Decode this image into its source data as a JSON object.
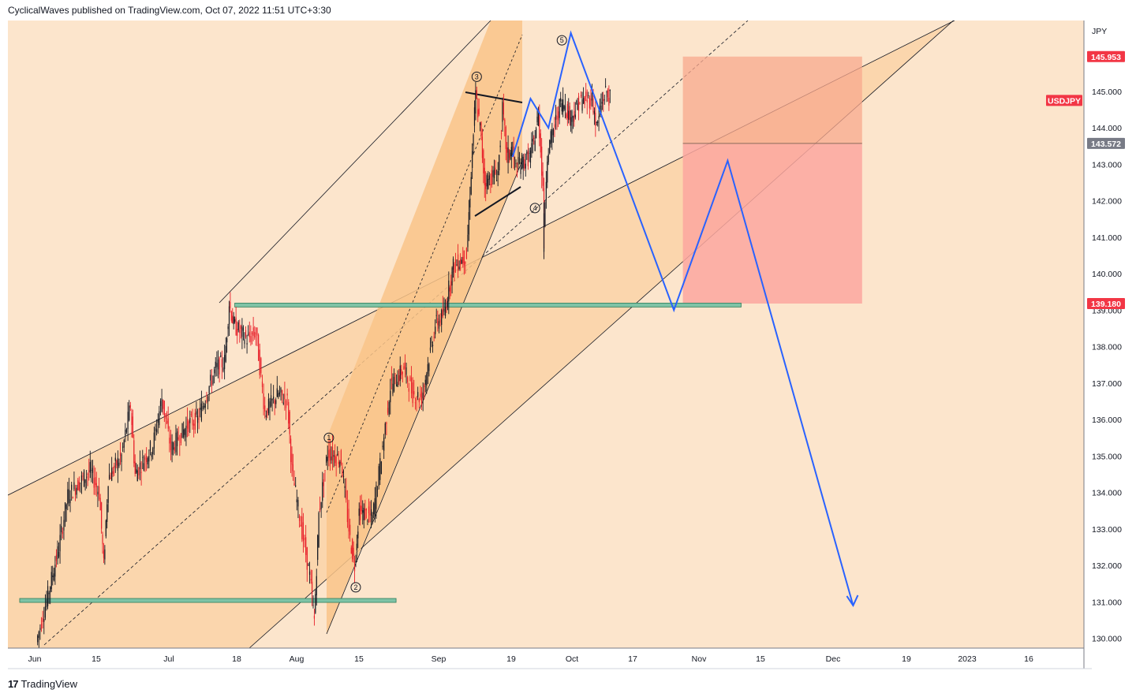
{
  "header": {
    "publisher_line": "CyclicalWaves published on TradingView.com, Oct 07, 2022 11:51 UTC+3:30"
  },
  "footer": {
    "logo_glyph": "17",
    "brand": "TradingView"
  },
  "colors": {
    "background": "#fce5cc",
    "channel_fill": "#fbd6ad",
    "inner_channel_fill": "#f9c488",
    "candle_up": "#131722",
    "candle_down": "#e8202a",
    "zigzag": "#2962ff",
    "support_zone": "#7ec3a6",
    "risk_box": "#f8a88e",
    "target_box": "#fba79f",
    "price_tag_red": "#f23645",
    "price_tag_grey": "#787b86"
  },
  "chart_data": {
    "type": "candlestick",
    "symbol": "USDJPY",
    "currency": "JPY",
    "x_ticks": [
      "Jun",
      "15",
      "Jul",
      "18",
      "Aug",
      "15",
      "Sep",
      "19",
      "Oct",
      "17",
      "Nov",
      "15",
      "Dec",
      "19",
      "2023",
      "16"
    ],
    "y_ticks": [
      "130.000",
      "131.000",
      "132.000",
      "133.000",
      "134.000",
      "135.000",
      "136.000",
      "137.000",
      "138.000",
      "139.000",
      "140.000",
      "141.000",
      "142.000",
      "143.000",
      "144.000",
      "145.000"
    ],
    "ylim": [
      129.7,
      146.6
    ],
    "price_tags": [
      {
        "label": "145.953",
        "value": 145.953,
        "color": "red"
      },
      {
        "label": "USDJPY",
        "value": 144.75,
        "color": "red"
      },
      {
        "label": "143.572",
        "value": 143.572,
        "color": "grey"
      },
      {
        "label": "139.180",
        "value": 139.18,
        "color": "red"
      }
    ],
    "price_path": [
      [
        "2022-06-01",
        129.9
      ],
      [
        "2022-06-03",
        130.9
      ],
      [
        "2022-06-06",
        132.5
      ],
      [
        "2022-06-08",
        133.9
      ],
      [
        "2022-06-10",
        134.2
      ],
      [
        "2022-06-13",
        134.6
      ],
      [
        "2022-06-15",
        134.0
      ],
      [
        "2022-06-16",
        132.0
      ],
      [
        "2022-06-17",
        134.4
      ],
      [
        "2022-06-20",
        135.0
      ],
      [
        "2022-06-22",
        136.4
      ],
      [
        "2022-06-23",
        134.5
      ],
      [
        "2022-06-27",
        135.3
      ],
      [
        "2022-06-29",
        136.6
      ],
      [
        "2022-07-01",
        135.2
      ],
      [
        "2022-07-05",
        135.9
      ],
      [
        "2022-07-07",
        136.0
      ],
      [
        "2022-07-11",
        137.4
      ],
      [
        "2022-07-13",
        137.6
      ],
      [
        "2022-07-14",
        139.2
      ],
      [
        "2022-07-15",
        138.6
      ],
      [
        "2022-07-18",
        138.2
      ],
      [
        "2022-07-20",
        138.4
      ],
      [
        "2022-07-22",
        136.2
      ],
      [
        "2022-07-25",
        136.7
      ],
      [
        "2022-07-27",
        136.5
      ],
      [
        "2022-07-28",
        134.6
      ],
      [
        "2022-08-01",
        131.7
      ],
      [
        "2022-08-02",
        130.5
      ],
      [
        "2022-08-03",
        133.4
      ],
      [
        "2022-08-05",
        135.1
      ],
      [
        "2022-08-08",
        134.9
      ],
      [
        "2022-08-10",
        132.7
      ],
      [
        "2022-08-11",
        132.0
      ],
      [
        "2022-08-12",
        133.5
      ],
      [
        "2022-08-15",
        133.3
      ],
      [
        "2022-08-17",
        135.0
      ],
      [
        "2022-08-19",
        136.9
      ],
      [
        "2022-08-22",
        137.4
      ],
      [
        "2022-08-24",
        136.7
      ],
      [
        "2022-08-26",
        136.6
      ],
      [
        "2022-08-29",
        138.6
      ],
      [
        "2022-08-31",
        138.9
      ],
      [
        "2022-09-01",
        139.6
      ],
      [
        "2022-09-02",
        140.2
      ],
      [
        "2022-09-05",
        140.5
      ],
      [
        "2022-09-06",
        142.8
      ],
      [
        "2022-09-07",
        144.9
      ],
      [
        "2022-09-08",
        144.0
      ],
      [
        "2022-09-09",
        142.5
      ],
      [
        "2022-09-12",
        142.8
      ],
      [
        "2022-09-13",
        144.5
      ],
      [
        "2022-09-14",
        143.2
      ],
      [
        "2022-09-15",
        143.4
      ],
      [
        "2022-09-16",
        142.9
      ],
      [
        "2022-09-19",
        143.2
      ],
      [
        "2022-09-20",
        143.6
      ],
      [
        "2022-09-21",
        144.4
      ],
      [
        "2022-09-22",
        142.4
      ],
      [
        "2022-09-22",
        140.8
      ],
      [
        "2022-09-23",
        143.3
      ],
      [
        "2022-09-26",
        144.7
      ],
      [
        "2022-09-27",
        144.6
      ],
      [
        "2022-09-28",
        144.3
      ],
      [
        "2022-09-29",
        144.4
      ],
      [
        "2022-09-30",
        144.7
      ],
      [
        "2022-10-03",
        144.8
      ],
      [
        "2022-10-04",
        144.0
      ],
      [
        "2022-10-05",
        144.6
      ],
      [
        "2022-10-06",
        145.0
      ],
      [
        "2022-10-07",
        144.8
      ]
    ],
    "wave_labels": [
      {
        "label": "1",
        "date": "2022-08-05",
        "price": 135.5
      },
      {
        "label": "2",
        "date": "2022-08-11",
        "price": 131.4
      },
      {
        "label": "3",
        "date": "2022-09-07",
        "price": 145.4
      },
      {
        "label": "4",
        "date": "2022-09-20",
        "price": 141.8
      },
      {
        "label": "5",
        "date": "2022-09-26",
        "price": 146.4
      }
    ],
    "projection_path": [
      [
        "2022-09-28",
        146.6
      ],
      [
        "2022-10-21",
        139.0
      ],
      [
        "2022-11-02",
        143.1
      ],
      [
        "2022-11-30",
        130.9
      ]
    ],
    "support_zones": [
      {
        "price_low": 130.9,
        "price_high": 131.05,
        "from": "2022-05-28",
        "to": "2022-08-20"
      },
      {
        "price_low": 139.0,
        "price_high": 139.15,
        "from": "2022-07-15",
        "to": "2022-11-05"
      }
    ],
    "position_box": {
      "from": "2022-10-23",
      "to": "2022-12-02",
      "stop": 145.953,
      "entry": 143.572,
      "target": 139.18
    }
  }
}
